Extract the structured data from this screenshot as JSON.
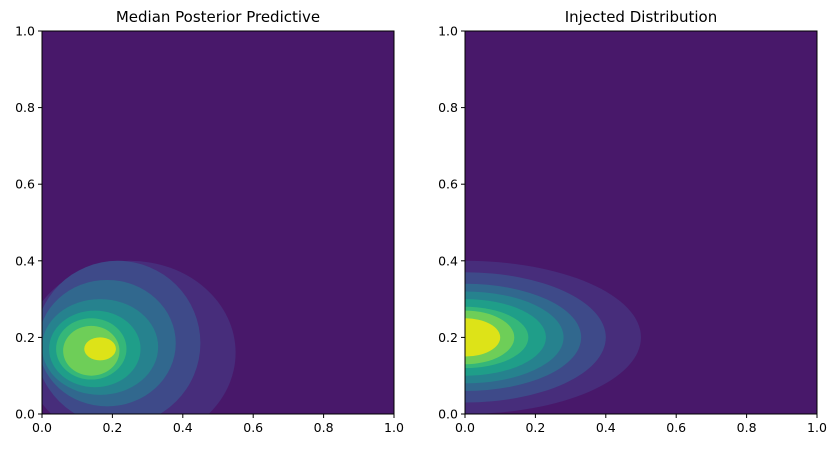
{
  "chart_data": [
    {
      "type": "contourf",
      "title": "Median Posterior Predictive",
      "xlabel": "",
      "ylabel": "",
      "xlim": [
        0,
        1
      ],
      "ylim": [
        0,
        1
      ],
      "xticks": [
        "0.0",
        "0.2",
        "0.4",
        "0.6",
        "0.8",
        "1.0"
      ],
      "yticks": [
        "0.0",
        "0.2",
        "0.4",
        "0.6",
        "0.8",
        "1.0"
      ],
      "grid": false,
      "colormap": "viridis",
      "levels": [
        {
          "x": [
            -0.05,
            0.55
          ],
          "y": [
            -0.08,
            0.4
          ],
          "color": "#472d7b"
        },
        {
          "x": [
            -0.02,
            0.45
          ],
          "y": [
            -0.03,
            0.4
          ],
          "color": "#3e4a89"
        },
        {
          "x": [
            -0.01,
            0.38
          ],
          "y": [
            0.02,
            0.35
          ],
          "color": "#31688e"
        },
        {
          "x": [
            0.0,
            0.33
          ],
          "y": [
            0.05,
            0.3
          ],
          "color": "#26828e"
        },
        {
          "x": [
            0.02,
            0.28
          ],
          "y": [
            0.07,
            0.27
          ],
          "color": "#1f9e89"
        },
        {
          "x": [
            0.04,
            0.24
          ],
          "y": [
            0.09,
            0.25
          ],
          "color": "#35b779"
        },
        {
          "x": [
            0.06,
            0.22
          ],
          "y": [
            0.1,
            0.23
          ],
          "color": "#6ece58"
        },
        {
          "x": [
            0.12,
            0.21
          ],
          "y": [
            0.14,
            0.2
          ],
          "color": "#dde318"
        }
      ],
      "background_color": "#48186a",
      "peak": {
        "x": 0.17,
        "y": 0.17
      }
    },
    {
      "type": "contourf",
      "title": "Injected Distribution",
      "xlabel": "",
      "ylabel": "",
      "xlim": [
        0,
        1
      ],
      "ylim": [
        0,
        1
      ],
      "xticks": [
        "0.0",
        "0.2",
        "0.4",
        "0.6",
        "0.8",
        "1.0"
      ],
      "yticks": [
        "0.0",
        "0.2",
        "0.4",
        "0.6",
        "0.8",
        "1.0"
      ],
      "grid": false,
      "colormap": "viridis",
      "levels": [
        {
          "x": [
            -0.5,
            0.5
          ],
          "y": [
            0.0,
            0.4
          ],
          "color": "#472d7b"
        },
        {
          "x": [
            -0.4,
            0.4
          ],
          "y": [
            0.03,
            0.37
          ],
          "color": "#3e4a89"
        },
        {
          "x": [
            -0.33,
            0.33
          ],
          "y": [
            0.06,
            0.34
          ],
          "color": "#31688e"
        },
        {
          "x": [
            -0.28,
            0.28
          ],
          "y": [
            0.08,
            0.32
          ],
          "color": "#26828e"
        },
        {
          "x": [
            -0.23,
            0.23
          ],
          "y": [
            0.1,
            0.3
          ],
          "color": "#1f9e89"
        },
        {
          "x": [
            -0.18,
            0.18
          ],
          "y": [
            0.12,
            0.28
          ],
          "color": "#35b779"
        },
        {
          "x": [
            -0.14,
            0.14
          ],
          "y": [
            0.13,
            0.27
          ],
          "color": "#6ece58"
        },
        {
          "x": [
            -0.1,
            0.1
          ],
          "y": [
            0.15,
            0.25
          ],
          "color": "#dde318"
        }
      ],
      "background_color": "#48186a",
      "peak": {
        "x": 0.1,
        "y": 0.2
      }
    }
  ]
}
